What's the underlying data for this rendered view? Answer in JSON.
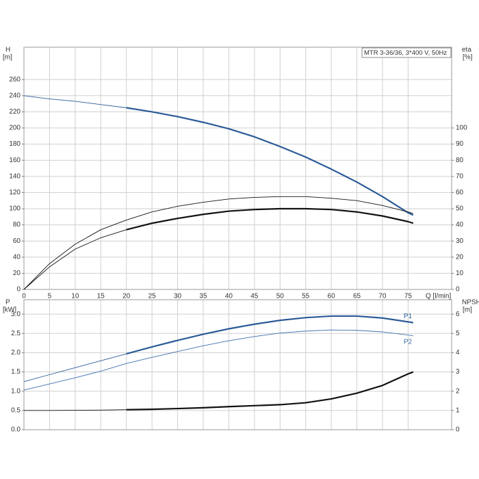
{
  "chart_data": [
    {
      "type": "line",
      "title": "MTR 3-36/36, 3*400 V, 50Hz",
      "xlabel": "Q [l/min]",
      "ylabel": "H",
      "yunit": "[m]",
      "y2label": "eta",
      "y2unit": "[%]",
      "x": [
        0,
        5,
        10,
        15,
        20,
        25,
        30,
        35,
        40,
        45,
        50,
        55,
        60,
        65,
        70,
        75,
        76
      ],
      "xlim": [
        0,
        83.5
      ],
      "xticks": [
        0,
        5,
        10,
        15,
        20,
        25,
        30,
        35,
        40,
        45,
        50,
        55,
        60,
        65,
        70,
        75
      ],
      "ylim": [
        0,
        300
      ],
      "yticks": [
        0,
        20,
        40,
        60,
        80,
        100,
        120,
        140,
        160,
        180,
        200,
        220,
        240,
        260
      ],
      "y2lim": [
        0,
        150
      ],
      "y2ticks": [
        0,
        10,
        20,
        30,
        40,
        50,
        60,
        70,
        80,
        90,
        100
      ],
      "grid": true,
      "show_xtick_labels": true,
      "series": [
        {
          "color": "#2b5a98",
          "bold_from": 20,
          "values": [
            240,
            236,
            233,
            229,
            225,
            220,
            214,
            207,
            199,
            189,
            177,
            164,
            149,
            133,
            115,
            95,
            92
          ]
        },
        {
          "color": "#111111",
          "axis": "y2",
          "values": [
            0,
            16,
            28,
            37,
            43,
            48,
            51.5,
            54,
            56,
            57,
            57.5,
            57.5,
            56.5,
            55,
            52,
            48,
            47
          ]
        },
        {
          "color": "#111111",
          "axis": "y2",
          "bold_from": 20,
          "values": [
            0,
            14,
            25,
            32,
            37,
            41,
            44,
            46.5,
            48.5,
            49.5,
            50,
            50,
            49.5,
            48,
            45.5,
            42,
            41
          ]
        }
      ]
    },
    {
      "type": "line",
      "ylabel": "P",
      "yunit": "[kW]",
      "y2label": "NPSH",
      "y2unit": "[m]",
      "x": [
        0,
        5,
        10,
        15,
        20,
        25,
        30,
        35,
        40,
        45,
        50,
        55,
        60,
        65,
        70,
        75,
        76
      ],
      "xlim": [
        0,
        83.5
      ],
      "xticks": [
        0,
        5,
        10,
        15,
        20,
        25,
        30,
        35,
        40,
        45,
        50,
        55,
        60,
        65,
        70,
        75
      ],
      "ylim": [
        0,
        3.375
      ],
      "yticks": [
        {
          "value": 0,
          "label": "0.0"
        },
        0.5,
        {
          "value": 1,
          "label": "1.0"
        },
        1.5,
        {
          "value": 2,
          "label": "2.0"
        },
        2.5,
        {
          "value": 3,
          "label": "3.0"
        }
      ],
      "y2lim": [
        0,
        6.75
      ],
      "y2ticks": [
        0,
        1,
        2,
        3,
        4,
        5,
        6
      ],
      "grid": true,
      "show_xtick_labels": false,
      "series": [
        {
          "name": "P1",
          "color": "#2b5a98",
          "bold_from": 20,
          "values": [
            1.25,
            1.43,
            1.61,
            1.79,
            1.97,
            2.15,
            2.32,
            2.48,
            2.62,
            2.74,
            2.84,
            2.91,
            2.95,
            2.95,
            2.9,
            2.8,
            2.78
          ]
        },
        {
          "name": "P2",
          "color": "#3f6fae",
          "values": [
            1.03,
            1.19,
            1.35,
            1.52,
            1.72,
            1.88,
            2.03,
            2.18,
            2.31,
            2.42,
            2.51,
            2.56,
            2.59,
            2.58,
            2.54,
            2.46,
            2.44
          ]
        },
        {
          "color": "#111111",
          "axis": "y2",
          "bold_from": 20,
          "values": [
            1,
            1,
            1.01,
            1.02,
            1.04,
            1.06,
            1.1,
            1.14,
            1.2,
            1.25,
            1.3,
            1.4,
            1.6,
            1.9,
            2.3,
            2.9,
            3
          ]
        }
      ]
    }
  ]
}
